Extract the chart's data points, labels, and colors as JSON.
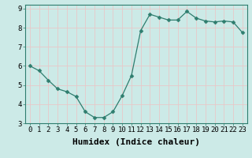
{
  "x": [
    0,
    1,
    2,
    3,
    4,
    5,
    6,
    7,
    8,
    9,
    10,
    11,
    12,
    13,
    14,
    15,
    16,
    17,
    18,
    19,
    20,
    21,
    22,
    23
  ],
  "y": [
    6.0,
    5.75,
    5.25,
    4.8,
    4.65,
    4.4,
    3.6,
    3.3,
    3.3,
    3.6,
    4.45,
    5.5,
    7.85,
    8.7,
    8.55,
    8.4,
    8.4,
    8.85,
    8.5,
    8.35,
    8.3,
    8.35,
    8.3,
    7.75
  ],
  "line_color": "#2e7d6e",
  "marker": "D",
  "marker_size": 2.5,
  "bg_color": "#cceae7",
  "grid_color": "#e8c8c8",
  "xlabel": "Humidex (Indice chaleur)",
  "xlabel_fontsize": 8,
  "tick_fontsize": 6.5,
  "xlim": [
    -0.5,
    23.5
  ],
  "ylim": [
    3.0,
    9.2
  ],
  "yticks": [
    3,
    4,
    5,
    6,
    7,
    8,
    9
  ],
  "xticks": [
    0,
    1,
    2,
    3,
    4,
    5,
    6,
    7,
    8,
    9,
    10,
    11,
    12,
    13,
    14,
    15,
    16,
    17,
    18,
    19,
    20,
    21,
    22,
    23
  ]
}
